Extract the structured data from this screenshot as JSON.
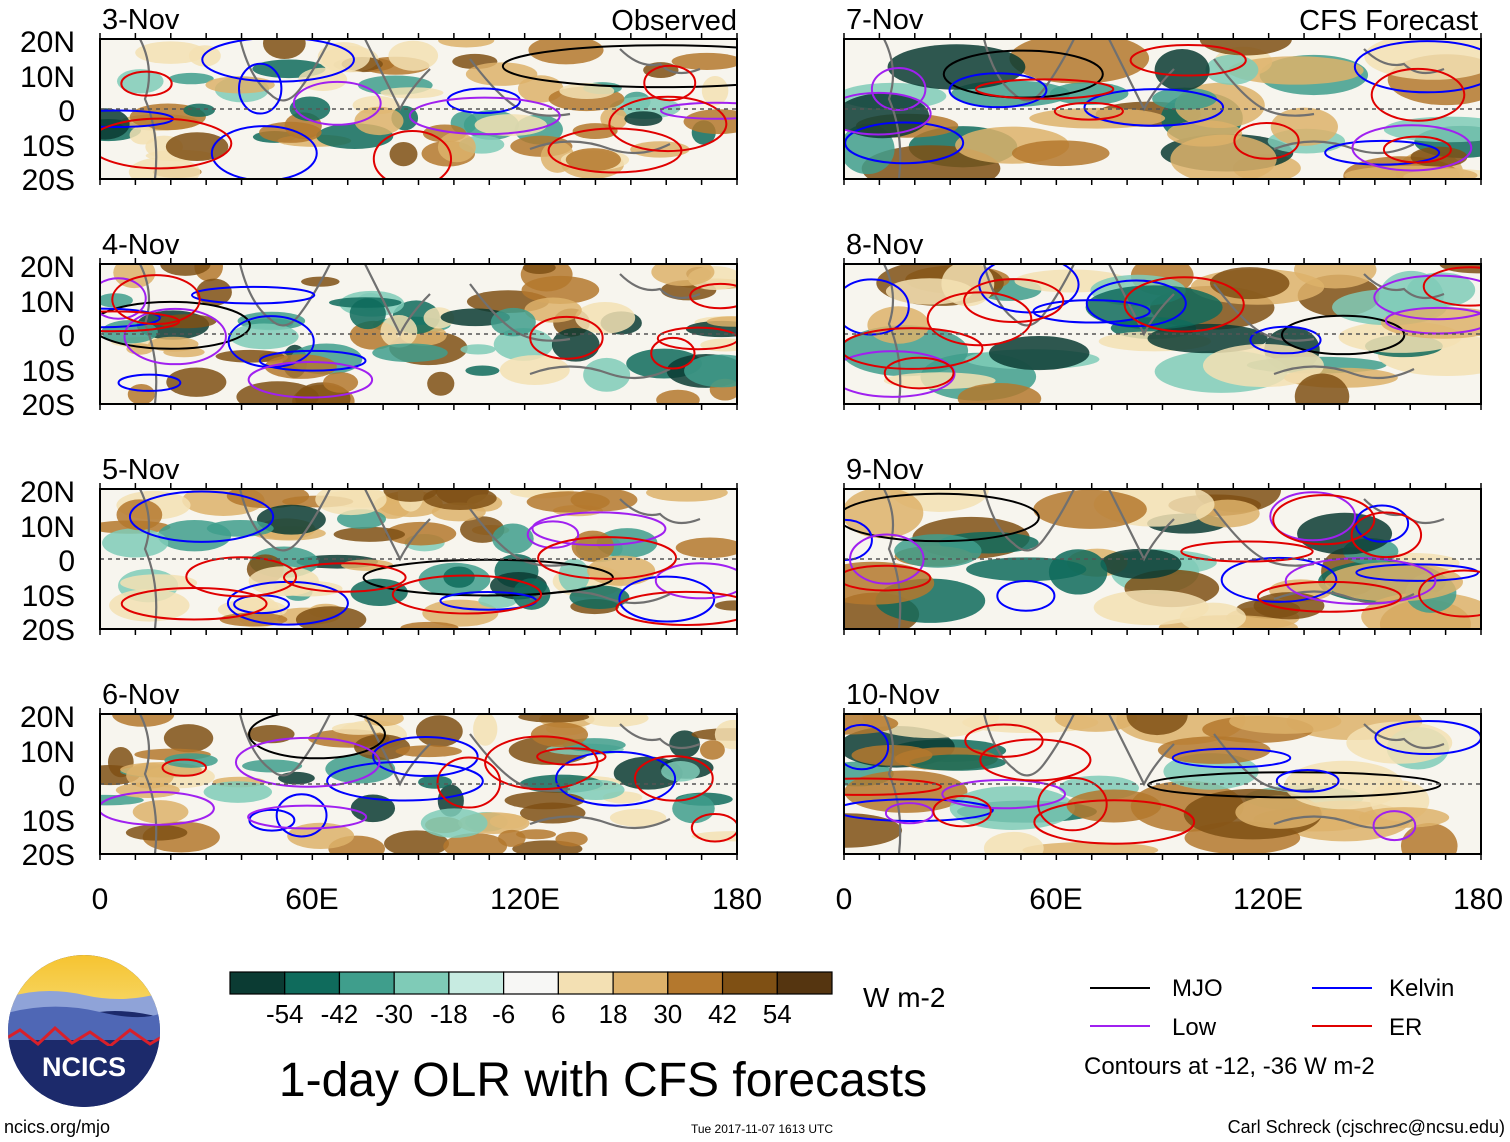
{
  "title": "1-day OLR with CFS forecasts",
  "observed_label": "Observed",
  "forecast_label": "CFS Forecast",
  "panels_observed": [
    {
      "date": "3-Nov"
    },
    {
      "date": "4-Nov"
    },
    {
      "date": "5-Nov"
    },
    {
      "date": "6-Nov"
    }
  ],
  "panels_forecast": [
    {
      "date": "7-Nov"
    },
    {
      "date": "8-Nov"
    },
    {
      "date": "9-Nov"
    },
    {
      "date": "10-Nov"
    }
  ],
  "lat_labels": [
    "20N",
    "10N",
    "0",
    "10S",
    "20S"
  ],
  "lon_labels": [
    "0",
    "60E",
    "120E",
    "180"
  ],
  "colorbar": {
    "ticks": [
      "-54",
      "-42",
      "-30",
      "-18",
      "-6",
      "6",
      "18",
      "30",
      "42",
      "54"
    ],
    "units": "W m-2",
    "colors": [
      "#0b3b33",
      "#0f6b5c",
      "#3f9e8c",
      "#7fcbb7",
      "#c7ebe1",
      "#f7f7f5",
      "#f3e0b3",
      "#ddb16a",
      "#b4782d",
      "#7f5014",
      "#553510"
    ]
  },
  "legend": {
    "items": [
      {
        "label": "MJO",
        "color": "#000000"
      },
      {
        "label": "Kelvin",
        "color": "#0000ff"
      },
      {
        "label": "Low",
        "color": "#a020f0"
      },
      {
        "label": "ER",
        "color": "#e00000"
      }
    ],
    "note": "Contours at -12, -36 W m-2"
  },
  "logo_text": "NCICS",
  "website": "ncics.org/mjo",
  "timestamp": "Tue 2017-11-07 1613 UTC",
  "credit": "Carl Schreck (cjschrec@ncsu.edu)"
}
